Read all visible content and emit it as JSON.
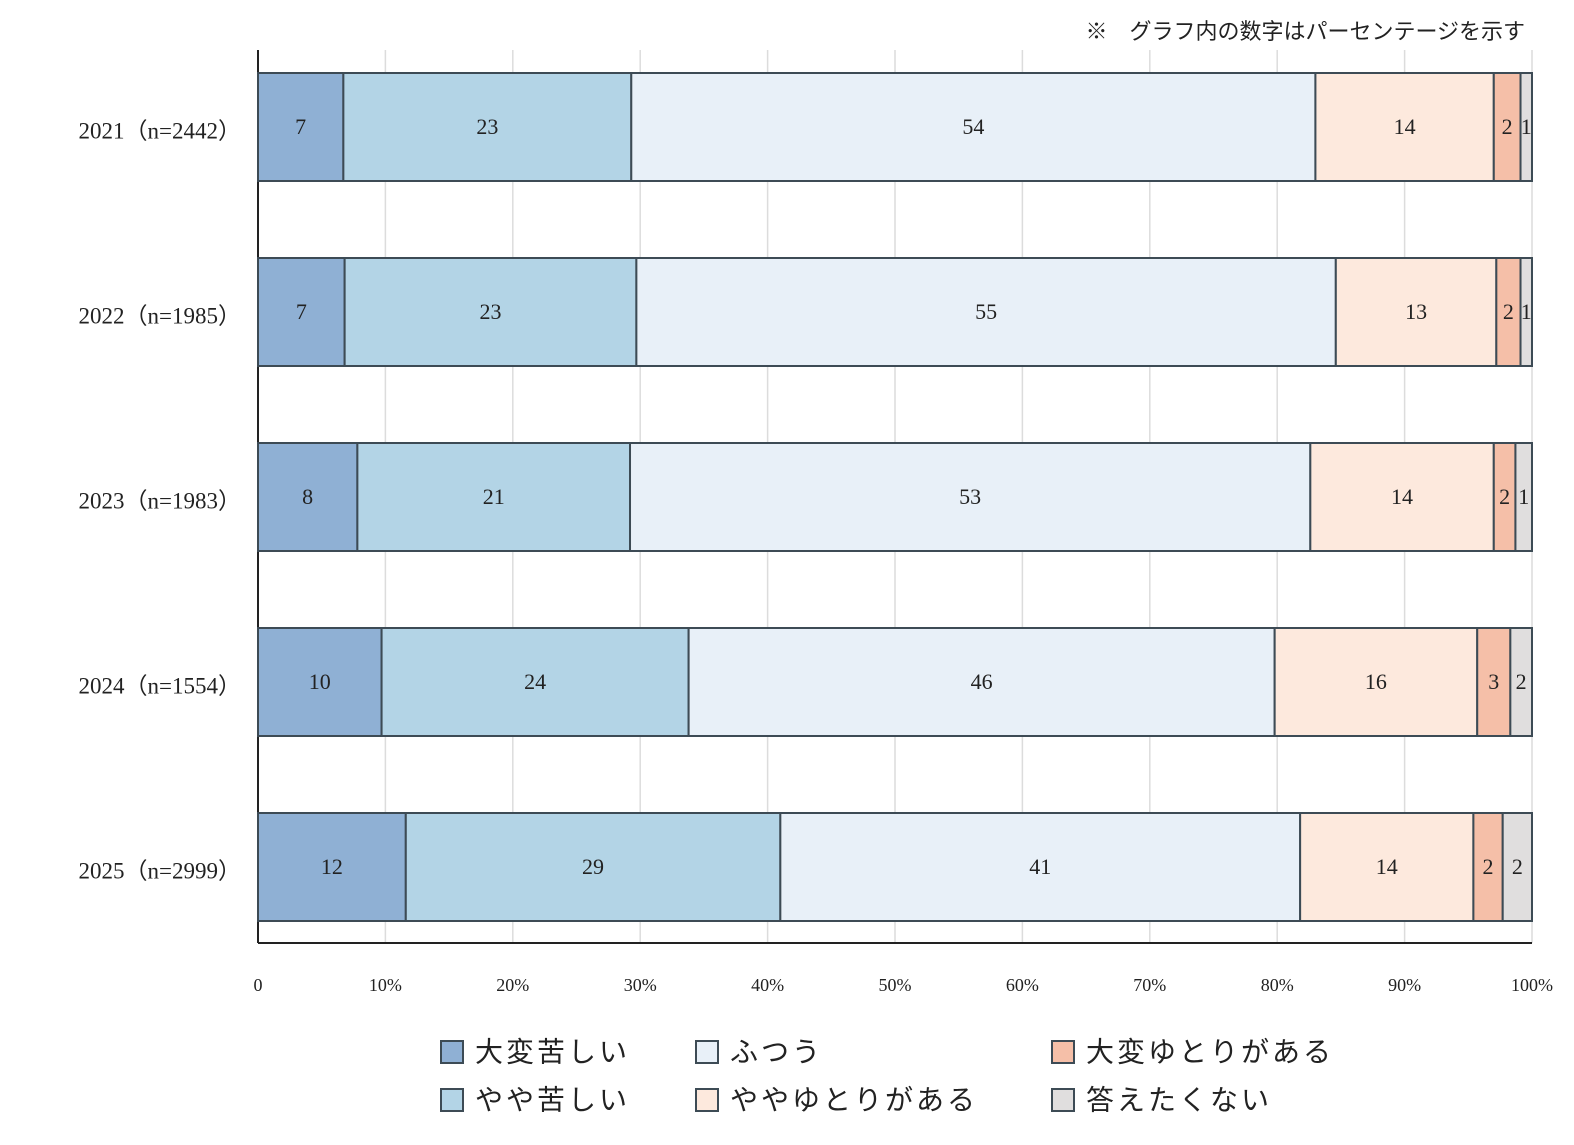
{
  "chart_data": {
    "type": "stacked-bar-horizontal",
    "note": "※　グラフ内の数字はパーセンテージを示す",
    "categories": [
      "2021（n=2442）",
      "2022（n=1985）",
      "2023（n=1983）",
      "2024（n=1554）",
      "2025（n=2999）"
    ],
    "series": [
      {
        "name": "大変苦しい",
        "color": "#8fb0d4",
        "values": [
          6.7,
          6.8,
          7.8,
          9.7,
          11.6
        ],
        "value_labels": [
          "7",
          "7",
          "8",
          "10",
          "12"
        ]
      },
      {
        "name": "やや苦しい",
        "color": "#b3d4e6",
        "values": [
          22.6,
          22.9,
          21.4,
          24.1,
          29.4
        ],
        "value_labels": [
          "23",
          "23",
          "21",
          "24",
          "29"
        ]
      },
      {
        "name": "ふつう",
        "color": "#e8f0f8",
        "values": [
          53.7,
          54.9,
          53.4,
          46.0,
          40.8
        ],
        "value_labels": [
          "54",
          "55",
          "53",
          "46",
          "41"
        ]
      },
      {
        "name": "ややゆとりがある",
        "color": "#fde9dd",
        "values": [
          14.0,
          12.6,
          14.4,
          15.9,
          13.6
        ],
        "value_labels": [
          "14",
          "13",
          "14",
          "16",
          "14"
        ]
      },
      {
        "name": "大変ゆとりがある",
        "color": "#f5bfa8",
        "values": [
          2.1,
          1.9,
          1.7,
          2.6,
          2.3
        ],
        "value_labels": [
          "2",
          "2",
          "2",
          "3",
          "2"
        ]
      },
      {
        "name": "答えたくない",
        "color": "#e0dede",
        "values": [
          0.9,
          0.9,
          1.3,
          1.7,
          2.3
        ],
        "value_labels": [
          "1",
          "1",
          "1",
          "2",
          "2"
        ]
      }
    ],
    "xlim": [
      0,
      100
    ],
    "xticks": [
      0,
      {
        "value": 10,
        "label": "10%"
      },
      {
        "value": 20,
        "label": "20%"
      },
      {
        "value": 30,
        "label": "30%"
      },
      {
        "value": 40,
        "label": "40%"
      },
      {
        "value": 50,
        "label": "50%"
      },
      {
        "value": 60,
        "label": "60%"
      },
      {
        "value": 70,
        "label": "70%"
      },
      {
        "value": 80,
        "label": "80%"
      },
      {
        "value": 90,
        "label": "90%"
      },
      {
        "value": 100,
        "label": "100%"
      }
    ],
    "grid": true
  }
}
